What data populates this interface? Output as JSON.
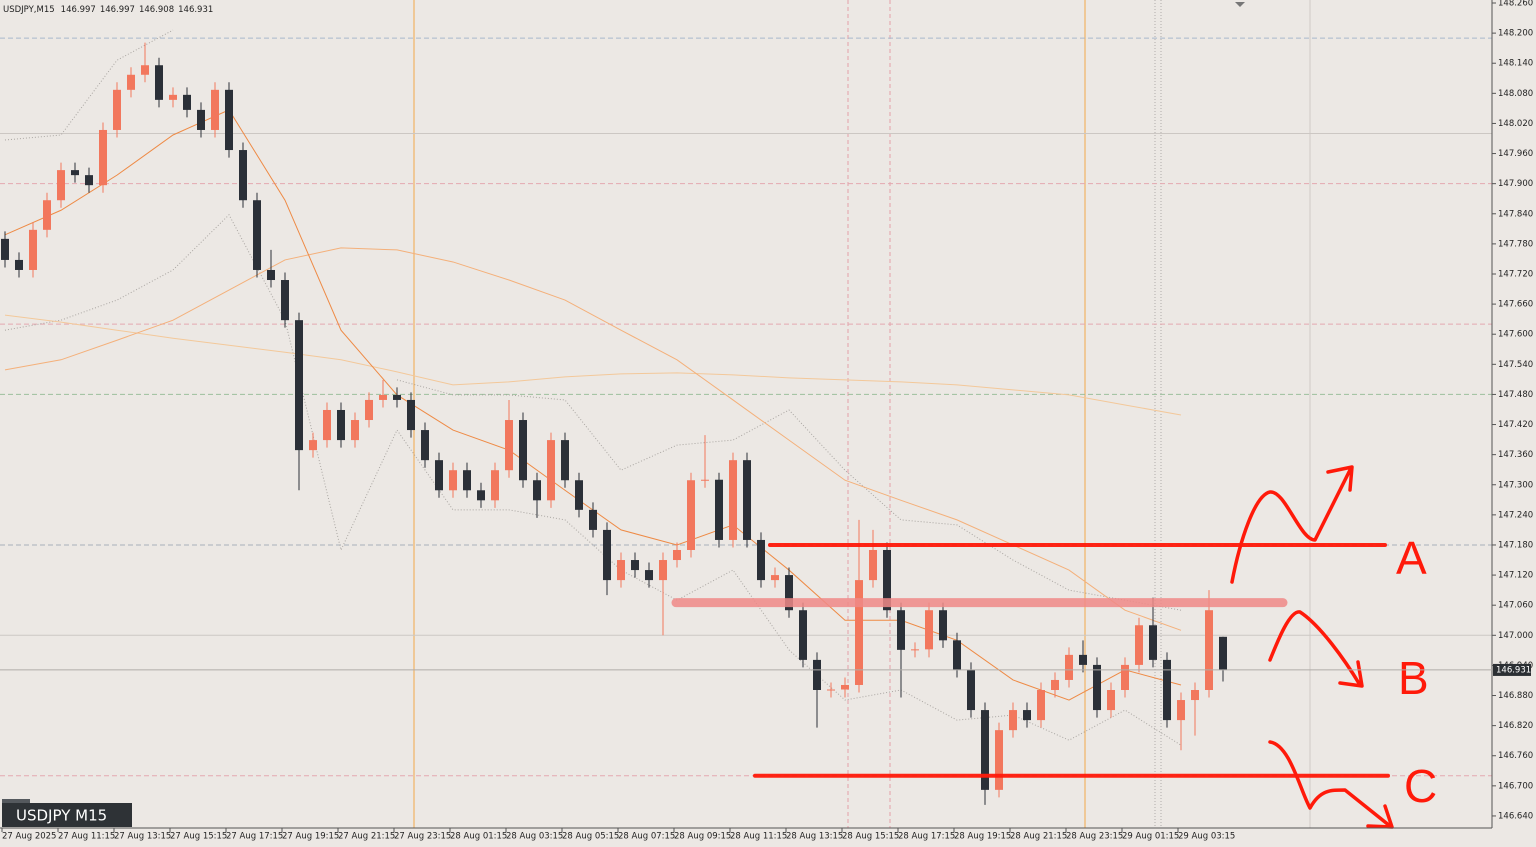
{
  "chart_data": {
    "type": "candlestick",
    "symbol": "USDJPY,M15",
    "header_ohlc": [
      146.997,
      146.997,
      146.908,
      146.931
    ],
    "symbol_label": "USDJPY M15",
    "up_color": "#f2775d",
    "down_color": "#2b3038",
    "ylim": [
      146.616,
      148.266
    ],
    "yticks": [
      {
        "value": 148.26,
        "label": "148.260"
      },
      {
        "value": 148.2,
        "label": "148.200"
      },
      {
        "value": 148.14,
        "label": "148.140"
      },
      {
        "value": 148.08,
        "label": "148.080"
      },
      {
        "value": 148.02,
        "label": "148.020"
      },
      {
        "value": 147.96,
        "label": "147.960"
      },
      {
        "value": 147.9,
        "label": "147.900"
      },
      {
        "value": 147.84,
        "label": "147.840"
      },
      {
        "value": 147.78,
        "label": "147.780"
      },
      {
        "value": 147.72,
        "label": "147.720"
      },
      {
        "value": 147.66,
        "label": "147.660"
      },
      {
        "value": 147.6,
        "label": "147.600"
      },
      {
        "value": 147.54,
        "label": "147.540"
      },
      {
        "value": 147.48,
        "label": "147.480"
      },
      {
        "value": 147.42,
        "label": "147.420"
      },
      {
        "value": 147.36,
        "label": "147.360"
      },
      {
        "value": 147.3,
        "label": "147.300"
      },
      {
        "value": 147.24,
        "label": "147.240"
      },
      {
        "value": 147.18,
        "label": "147.180"
      },
      {
        "value": 147.12,
        "label": "147.120"
      },
      {
        "value": 147.06,
        "label": "147.060"
      },
      {
        "value": 147.0,
        "label": "147.000"
      },
      {
        "value": 146.94,
        "label": "146.940"
      },
      {
        "value": 146.88,
        "label": "146.880"
      },
      {
        "value": 146.82,
        "label": "146.820"
      },
      {
        "value": 146.76,
        "label": "146.760"
      },
      {
        "value": 146.7,
        "label": "146.700"
      },
      {
        "value": 146.64,
        "label": "146.640"
      }
    ],
    "categories": [
      "27 Aug 2025",
      null,
      null,
      null,
      "27 Aug 11:15",
      null,
      null,
      null,
      "27 Aug 13:15",
      null,
      null,
      null,
      "27 Aug 15:15",
      null,
      null,
      null,
      "27 Aug 17:15",
      null,
      null,
      null,
      "27 Aug 19:15",
      null,
      null,
      null,
      "27 Aug 21:15",
      null,
      null,
      null,
      "27 Aug 23:15",
      null,
      null,
      null,
      "28 Aug 01:15",
      null,
      null,
      null,
      "28 Aug 03:15",
      null,
      null,
      null,
      "28 Aug 05:15",
      null,
      null,
      null,
      "28 Aug 07:15",
      null,
      null,
      null,
      "28 Aug 09:15",
      null,
      null,
      null,
      "28 Aug 11:15",
      null,
      null,
      null,
      "28 Aug 13:15",
      null,
      null,
      null,
      "28 Aug 15:15",
      null,
      null,
      null,
      "28 Aug 17:15",
      null,
      null,
      null,
      "28 Aug 19:15",
      null,
      null,
      null,
      "28 Aug 21:15",
      null,
      null,
      null,
      "28 Aug 23:15",
      null,
      null,
      null,
      "29 Aug 01:15",
      null,
      null,
      null,
      "29 Aug 03:15",
      null,
      null,
      null
    ],
    "ohlc": [
      [
        147.79,
        147.805,
        147.733,
        147.748
      ],
      [
        147.748,
        147.763,
        147.713,
        147.728
      ],
      [
        147.728,
        147.823,
        147.713,
        147.808
      ],
      [
        147.808,
        147.882,
        147.793,
        147.867
      ],
      [
        147.867,
        147.942,
        147.852,
        147.927
      ],
      [
        147.927,
        147.942,
        147.902,
        147.917
      ],
      [
        147.917,
        147.932,
        147.882,
        147.897
      ],
      [
        147.897,
        148.022,
        147.882,
        148.007
      ],
      [
        148.007,
        148.102,
        147.992,
        148.087
      ],
      [
        148.087,
        148.132,
        148.072,
        148.117
      ],
      [
        148.117,
        148.181,
        148.102,
        148.136
      ],
      [
        148.136,
        148.151,
        148.052,
        148.067
      ],
      [
        148.067,
        148.092,
        148.052,
        148.077
      ],
      [
        148.077,
        148.092,
        148.032,
        148.047
      ],
      [
        148.047,
        148.062,
        147.992,
        148.007
      ],
      [
        148.007,
        148.102,
        147.992,
        148.087
      ],
      [
        148.087,
        148.102,
        147.952,
        147.967
      ],
      [
        147.967,
        147.982,
        147.852,
        147.867
      ],
      [
        147.867,
        147.882,
        147.713,
        147.728
      ],
      [
        147.728,
        147.768,
        147.693,
        147.708
      ],
      [
        147.708,
        147.723,
        147.613,
        147.628
      ],
      [
        147.628,
        147.643,
        147.289,
        147.369
      ],
      [
        147.369,
        147.404,
        147.354,
        147.389
      ],
      [
        147.389,
        147.464,
        147.374,
        147.449
      ],
      [
        147.449,
        147.464,
        147.374,
        147.389
      ],
      [
        147.389,
        147.444,
        147.374,
        147.429
      ],
      [
        147.429,
        147.484,
        147.414,
        147.469
      ],
      [
        147.469,
        147.509,
        147.454,
        147.479
      ],
      [
        147.479,
        147.494,
        147.454,
        147.469
      ],
      [
        147.469,
        147.484,
        147.394,
        147.409
      ],
      [
        147.409,
        147.424,
        147.334,
        147.349
      ],
      [
        147.349,
        147.364,
        147.274,
        147.289
      ],
      [
        147.289,
        147.344,
        147.274,
        147.329
      ],
      [
        147.329,
        147.344,
        147.274,
        147.289
      ],
      [
        147.289,
        147.304,
        147.254,
        147.269
      ],
      [
        147.269,
        147.344,
        147.254,
        147.329
      ],
      [
        147.329,
        147.469,
        147.314,
        147.429
      ],
      [
        147.429,
        147.444,
        147.294,
        147.309
      ],
      [
        147.309,
        147.324,
        147.234,
        147.269
      ],
      [
        147.269,
        147.404,
        147.254,
        147.389
      ],
      [
        147.389,
        147.404,
        147.294,
        147.309
      ],
      [
        147.309,
        147.324,
        147.235,
        147.25
      ],
      [
        147.25,
        147.265,
        147.195,
        147.21
      ],
      [
        147.21,
        147.225,
        147.08,
        147.11
      ],
      [
        147.11,
        147.165,
        147.095,
        147.15
      ],
      [
        147.15,
        147.165,
        147.115,
        147.13
      ],
      [
        147.13,
        147.145,
        147.095,
        147.11
      ],
      [
        147.11,
        147.165,
        147.0,
        147.15
      ],
      [
        147.15,
        147.185,
        147.135,
        147.17
      ],
      [
        147.17,
        147.324,
        147.155,
        147.309
      ],
      [
        147.309,
        147.399,
        147.294,
        147.31
      ],
      [
        147.31,
        147.324,
        147.175,
        147.19
      ],
      [
        147.19,
        147.364,
        147.175,
        147.349
      ],
      [
        147.349,
        147.364,
        147.175,
        147.19
      ],
      [
        147.19,
        147.205,
        147.095,
        147.11
      ],
      [
        147.11,
        147.135,
        147.095,
        147.12
      ],
      [
        147.12,
        147.135,
        147.035,
        147.05
      ],
      [
        147.05,
        147.065,
        146.936,
        146.951
      ],
      [
        146.951,
        146.966,
        146.816,
        146.891
      ],
      [
        146.891,
        146.906,
        146.876,
        146.892
      ],
      [
        146.892,
        146.916,
        146.876,
        146.901
      ],
      [
        146.901,
        147.23,
        146.886,
        147.11
      ],
      [
        147.11,
        147.21,
        147.095,
        147.17
      ],
      [
        147.17,
        147.185,
        147.035,
        147.05
      ],
      [
        147.05,
        147.065,
        146.876,
        146.971
      ],
      [
        146.971,
        146.986,
        146.956,
        146.972
      ],
      [
        146.972,
        147.065,
        146.956,
        147.05
      ],
      [
        147.05,
        147.065,
        146.975,
        146.99
      ],
      [
        146.99,
        147.005,
        146.916,
        146.931
      ],
      [
        146.931,
        146.946,
        146.836,
        146.851
      ],
      [
        146.851,
        146.866,
        146.662,
        146.692
      ],
      [
        146.692,
        146.826,
        146.677,
        146.811
      ],
      [
        146.811,
        146.866,
        146.796,
        146.851
      ],
      [
        146.851,
        146.866,
        146.816,
        146.831
      ],
      [
        146.831,
        146.906,
        146.816,
        146.891
      ],
      [
        146.891,
        146.926,
        146.876,
        146.911
      ],
      [
        146.911,
        146.976,
        146.896,
        146.961
      ],
      [
        146.961,
        146.99,
        146.926,
        146.941
      ],
      [
        146.941,
        146.956,
        146.836,
        146.851
      ],
      [
        146.851,
        146.906,
        146.836,
        146.891
      ],
      [
        146.891,
        146.956,
        146.876,
        146.941
      ],
      [
        146.941,
        147.035,
        146.926,
        147.02
      ],
      [
        147.02,
        147.075,
        146.936,
        146.951
      ],
      [
        146.951,
        146.966,
        146.816,
        146.831
      ],
      [
        146.831,
        146.886,
        146.771,
        146.871
      ],
      [
        146.871,
        146.906,
        146.8,
        146.891
      ],
      [
        146.891,
        147.09,
        146.876,
        147.05
      ],
      [
        146.997,
        146.997,
        146.908,
        146.931
      ]
    ],
    "overlays": [
      {
        "color": "#a9a5a1",
        "dash": "1 2",
        "values": [
          147.987,
          147.997,
          148.146,
          148.206,
          null,
          null,
          null,
          147.509,
          147.479,
          147.479,
          147.469,
          147.329,
          147.379,
          147.389,
          147.449,
          147.329,
          147.23,
          147.22,
          147.15,
          147.09,
          147.07,
          147.05
        ]
      },
      {
        "color": "#a9a5a1",
        "dash": "1 2",
        "values": [
          147.608,
          147.628,
          147.668,
          147.728,
          147.838,
          147.628,
          147.17,
          147.409,
          147.25,
          147.25,
          147.23,
          147.13,
          147.07,
          147.13,
          146.971,
          146.871,
          146.891,
          146.831,
          146.841,
          146.791,
          146.851,
          146.781
        ]
      },
      {
        "color": "#f3c89a",
        "values": [
          147.638,
          147.624,
          147.608,
          147.592,
          147.578,
          147.564,
          147.549,
          147.525,
          147.499,
          147.505,
          147.515,
          147.521,
          147.523,
          147.519,
          147.513,
          147.509,
          147.505,
          147.499,
          147.489,
          147.479,
          147.459,
          147.439
        ]
      },
      {
        "color": "#f4b07a",
        "values": [
          147.529,
          147.549,
          147.588,
          147.628,
          147.688,
          147.748,
          147.772,
          147.768,
          147.744,
          147.708,
          147.668,
          147.608,
          147.549,
          147.469,
          147.389,
          147.309,
          147.269,
          147.23,
          147.18,
          147.13,
          147.05,
          147.01
        ]
      },
      {
        "color": "#ee8a45",
        "values": [
          147.798,
          147.847,
          147.917,
          147.997,
          148.047,
          147.867,
          147.608,
          147.479,
          147.409,
          147.369,
          147.289,
          147.21,
          147.18,
          147.22,
          147.13,
          147.03,
          147.03,
          146.99,
          146.911,
          146.871,
          146.931,
          146.901
        ]
      }
    ],
    "hlines": [
      {
        "value": 148.19,
        "color": "#a8b8cc",
        "dash": "5 3"
      },
      {
        "value": 148.0,
        "color": "#ccc7c3"
      },
      {
        "value": 147.9,
        "color": "#e4a8b0",
        "dash": "5 3"
      },
      {
        "value": 147.62,
        "color": "#e4a8b0",
        "dash": "5 3"
      },
      {
        "value": 147.48,
        "color": "#9cbf9c",
        "dash": "5 3"
      },
      {
        "value": 147.18,
        "color": "#a8b0ba",
        "dash": "5 3"
      },
      {
        "value": 147.0,
        "color": "#ccc7c3"
      },
      {
        "value": 146.72,
        "color": "#e4a8b0",
        "dash": "5 3"
      }
    ],
    "current_price": 146.931,
    "levels": [
      {
        "value": 147.18,
        "color": "#ff1a0a"
      },
      {
        "value": 147.065,
        "color": "#f08a88"
      },
      {
        "value": 146.72,
        "color": "#ff1a0a"
      }
    ],
    "annotations": [
      "A",
      "B",
      "C"
    ]
  }
}
